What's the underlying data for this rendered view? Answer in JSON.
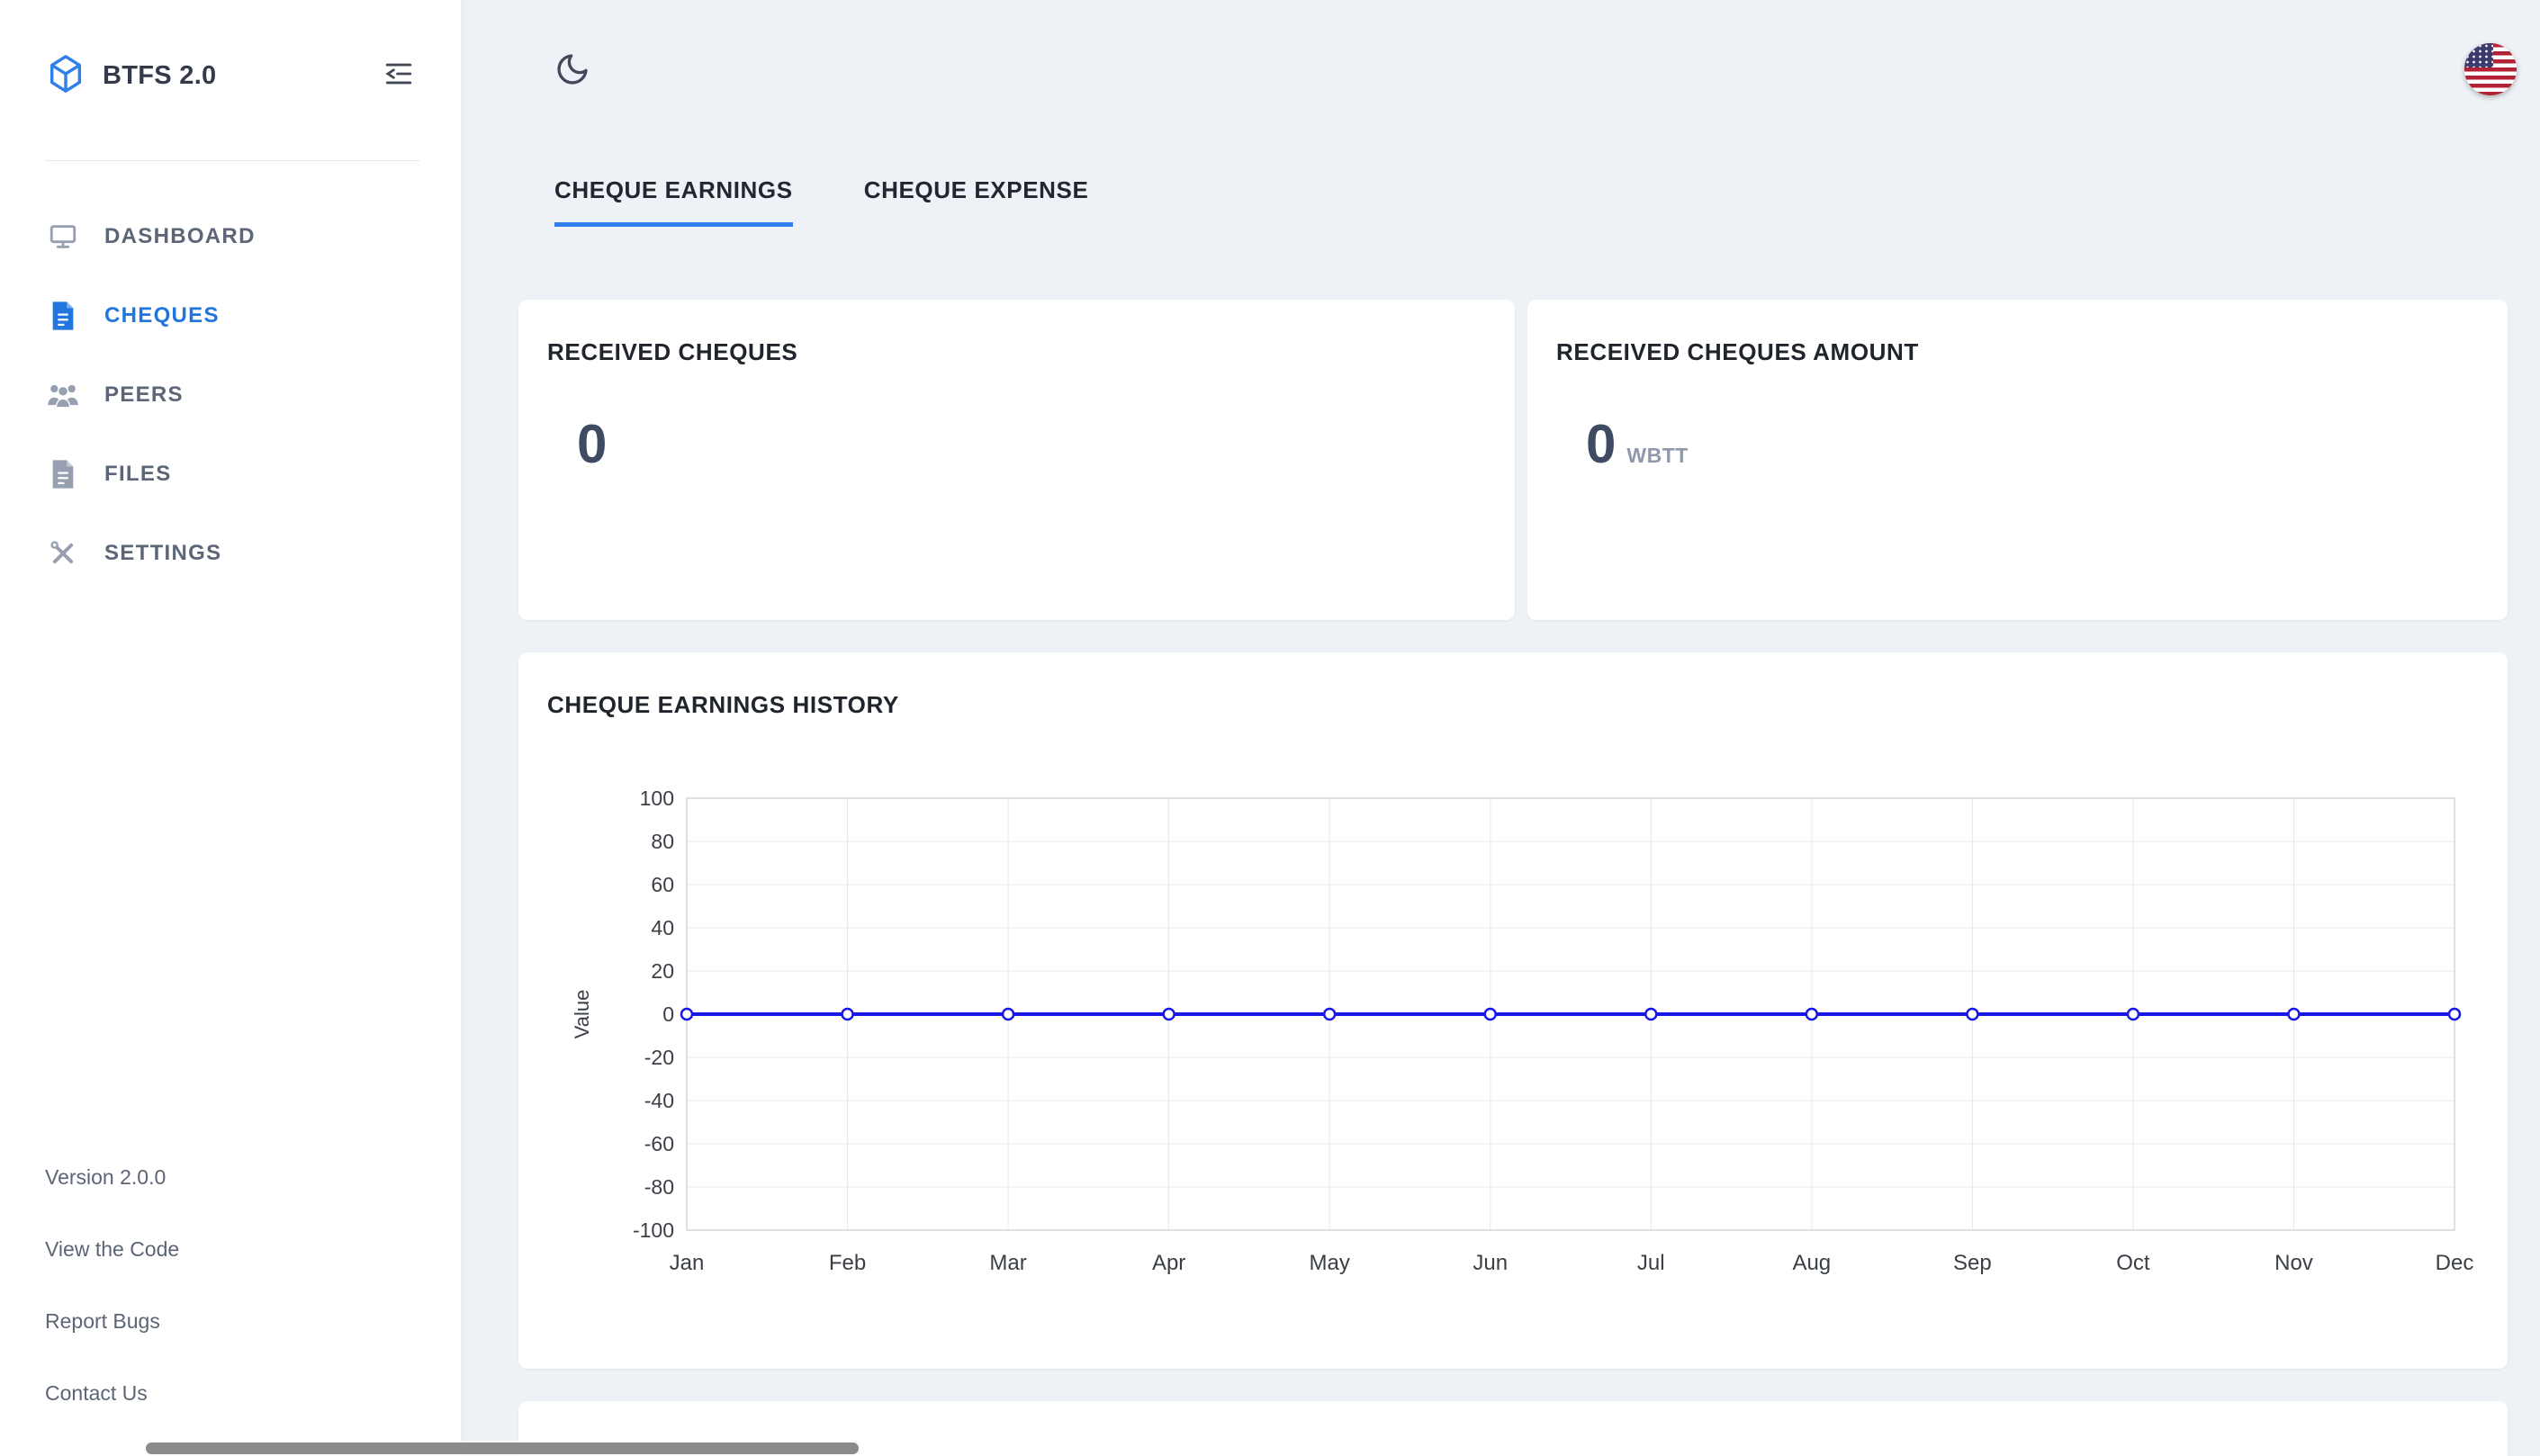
{
  "app": {
    "name": "BTFS 2.0"
  },
  "sidebar": {
    "nav": [
      {
        "label": "DASHBOARD",
        "icon": "monitor-icon",
        "active": false
      },
      {
        "label": "CHEQUES",
        "icon": "cheque-file-icon",
        "active": true
      },
      {
        "label": "PEERS",
        "icon": "peers-icon",
        "active": false
      },
      {
        "label": "FILES",
        "icon": "file-icon",
        "active": false
      },
      {
        "label": "SETTINGS",
        "icon": "tools-icon",
        "active": false
      }
    ],
    "footer": {
      "version": "Version 2.0.0",
      "links": [
        "View the Code",
        "Report Bugs",
        "Contact Us"
      ]
    }
  },
  "topbar": {
    "theme_toggle_icon": "moon-icon",
    "language_icon": "us-flag-icon"
  },
  "tabs": [
    {
      "label": "CHEQUE EARNINGS",
      "active": true
    },
    {
      "label": "CHEQUE EXPENSE",
      "active": false
    }
  ],
  "stats": {
    "received_cheques": {
      "title": "RECEIVED CHEQUES",
      "value": "0"
    },
    "received_cheques_amount": {
      "title": "RECEIVED CHEQUES AMOUNT",
      "value": "0",
      "unit": "WBTT"
    }
  },
  "history": {
    "title": "CHEQUE EARNINGS HISTORY"
  },
  "chart_data": {
    "type": "line",
    "title": "CHEQUE EARNINGS HISTORY",
    "x": [
      "Jan",
      "Feb",
      "Mar",
      "Apr",
      "May",
      "Jun",
      "Jul",
      "Aug",
      "Sep",
      "Oct",
      "Nov",
      "Dec"
    ],
    "series": [
      {
        "name": "Value",
        "values": [
          0,
          0,
          0,
          0,
          0,
          0,
          0,
          0,
          0,
          0,
          0,
          0
        ]
      }
    ],
    "xlabel": "",
    "ylabel": "Value",
    "ylim": [
      -100,
      100
    ],
    "yticks": [
      100,
      80,
      60,
      40,
      20,
      0,
      -20,
      -40,
      -60,
      -80,
      -100
    ],
    "grid": true,
    "legend": false,
    "line_color": "#1717e8",
    "marker": "circle-open",
    "grid_color": "#e8e8e8",
    "border_color": "#d4d7dc"
  },
  "colors": {
    "accent": "#2f80ed",
    "active_nav": "#2176dd",
    "background": "#eef1f6",
    "card": "#ffffff"
  }
}
